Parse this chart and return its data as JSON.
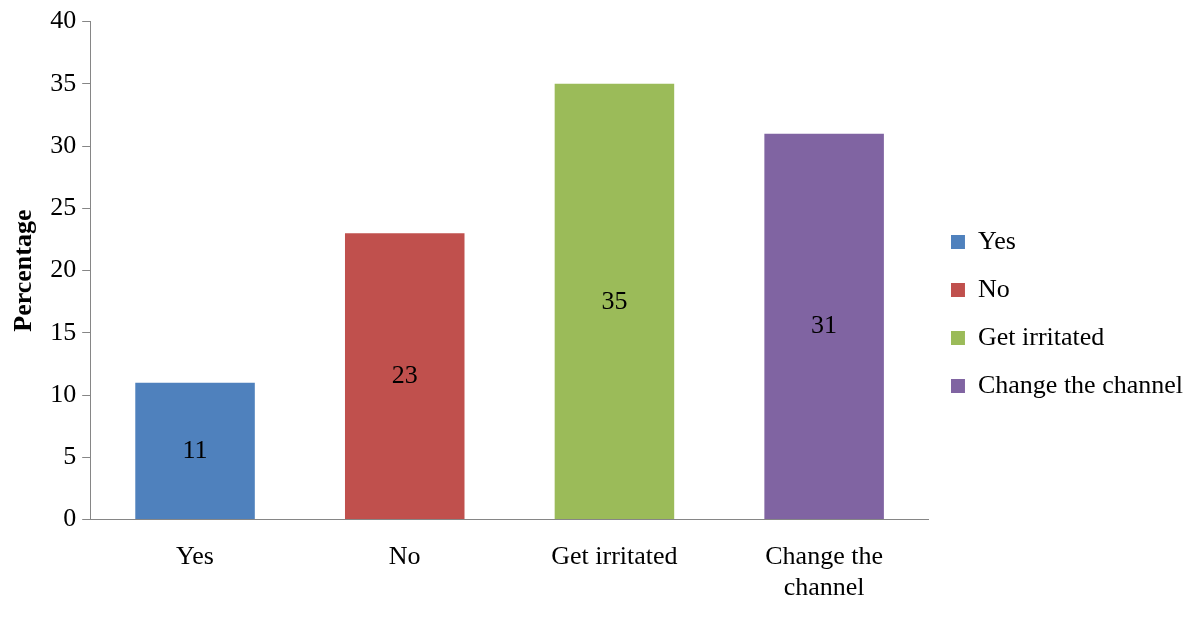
{
  "chart_data": {
    "type": "bar",
    "ylabel": "Percentage",
    "categories": [
      "Yes",
      "No",
      "Get irritated",
      "Change the channel"
    ],
    "series": [
      {
        "name": "Yes",
        "color": "#4f81bd",
        "values": [
          11,
          null,
          null,
          null
        ]
      },
      {
        "name": "No",
        "color": "#c0504d",
        "values": [
          null,
          23,
          null,
          null
        ]
      },
      {
        "name": "Get irritated",
        "color": "#9bbb59",
        "values": [
          null,
          null,
          35,
          null
        ]
      },
      {
        "name": "Change the channel",
        "color": "#8064a2",
        "values": [
          null,
          null,
          null,
          31
        ]
      }
    ],
    "ylim": [
      0,
      40
    ],
    "yticks": [
      0,
      5,
      10,
      15,
      20,
      25,
      30,
      35,
      40
    ],
    "grid": false,
    "legend": "right",
    "data_labels": true
  }
}
